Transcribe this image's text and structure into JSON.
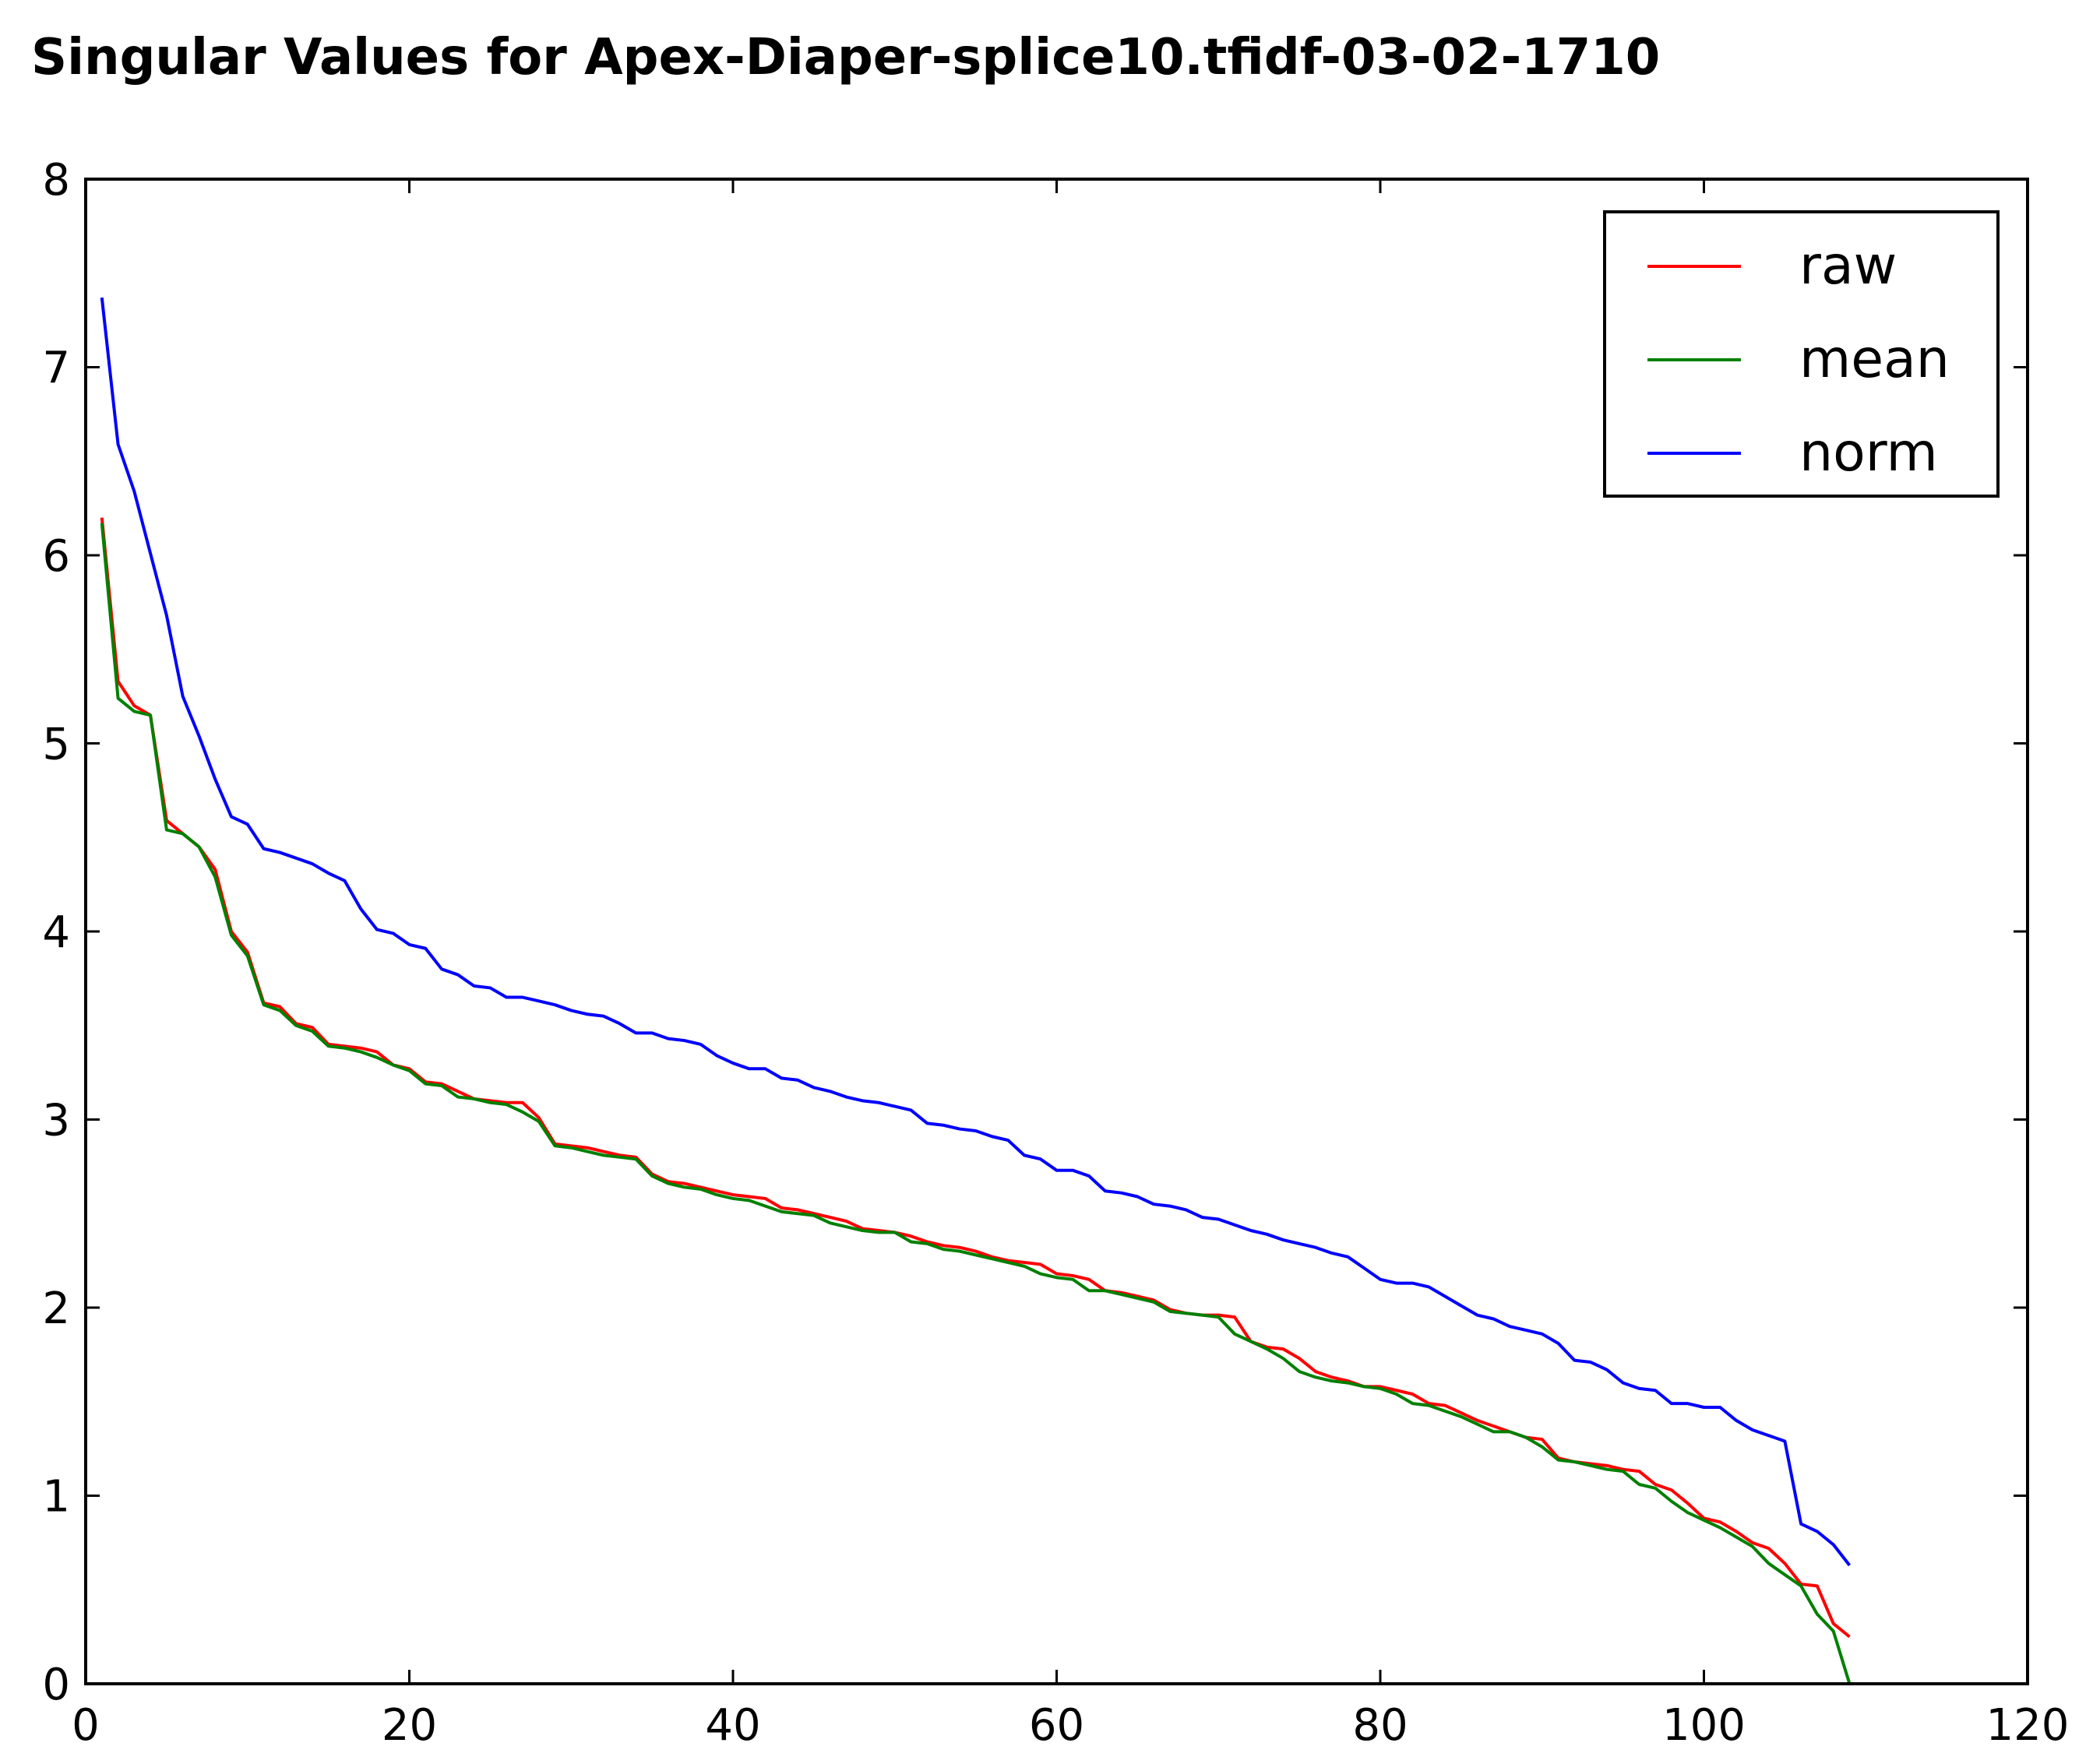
{
  "chart_data": {
    "type": "line",
    "title": "Singular Values for Apex-Diaper-splice10.tfidf-03-02-1710",
    "xlabel": "",
    "ylabel": "",
    "xlim": [
      0,
      120
    ],
    "ylim": [
      0,
      8
    ],
    "xticks": [
      0,
      20,
      40,
      60,
      80,
      100,
      120
    ],
    "yticks": [
      0,
      1,
      2,
      3,
      4,
      5,
      6,
      7,
      8
    ],
    "grid": false,
    "legend_position": "top-right",
    "x": [
      1,
      2,
      3,
      4,
      5,
      6,
      7,
      8,
      9,
      10,
      11,
      12,
      13,
      14,
      15,
      16,
      17,
      18,
      19,
      20,
      21,
      22,
      23,
      24,
      25,
      26,
      27,
      28,
      29,
      30,
      31,
      32,
      33,
      34,
      35,
      36,
      37,
      38,
      39,
      40,
      41,
      42,
      43,
      44,
      45,
      46,
      47,
      48,
      49,
      50,
      51,
      52,
      53,
      54,
      55,
      56,
      57,
      58,
      59,
      60,
      61,
      62,
      63,
      64,
      65,
      66,
      67,
      68,
      69,
      70,
      71,
      72,
      73,
      74,
      75,
      76,
      77,
      78,
      79,
      80,
      81,
      82,
      83,
      84,
      85,
      86,
      87,
      88,
      89,
      90,
      91,
      92,
      93,
      94,
      95,
      96,
      97,
      98,
      99,
      100,
      101,
      102,
      103,
      104,
      105,
      106,
      107,
      108,
      109
    ],
    "series": [
      {
        "name": "raw",
        "color": "#ff0000",
        "values": [
          6.2,
          5.33,
          5.2,
          5.15,
          4.59,
          4.52,
          4.45,
          4.33,
          4.0,
          3.89,
          3.62,
          3.6,
          3.51,
          3.49,
          3.4,
          3.39,
          3.38,
          3.36,
          3.29,
          3.27,
          3.2,
          3.19,
          3.15,
          3.11,
          3.1,
          3.09,
          3.09,
          3.01,
          2.87,
          2.86,
          2.85,
          2.83,
          2.81,
          2.8,
          2.71,
          2.67,
          2.66,
          2.64,
          2.62,
          2.6,
          2.59,
          2.58,
          2.53,
          2.52,
          2.5,
          2.48,
          2.46,
          2.42,
          2.41,
          2.4,
          2.38,
          2.35,
          2.33,
          2.32,
          2.3,
          2.27,
          2.25,
          2.24,
          2.23,
          2.18,
          2.17,
          2.15,
          2.09,
          2.08,
          2.06,
          2.04,
          1.99,
          1.97,
          1.96,
          1.96,
          1.95,
          1.82,
          1.79,
          1.78,
          1.73,
          1.66,
          1.63,
          1.61,
          1.58,
          1.58,
          1.56,
          1.54,
          1.49,
          1.48,
          1.44,
          1.4,
          1.37,
          1.34,
          1.31,
          1.3,
          1.2,
          1.18,
          1.17,
          1.16,
          1.14,
          1.13,
          1.06,
          1.03,
          0.96,
          0.88,
          0.86,
          0.81,
          0.75,
          0.72,
          0.64,
          0.53,
          0.52,
          0.32,
          0.25
        ]
      },
      {
        "name": "mean",
        "color": "#008000",
        "values": [
          6.17,
          5.24,
          5.17,
          5.15,
          4.54,
          4.52,
          4.45,
          4.29,
          3.98,
          3.87,
          3.61,
          3.58,
          3.5,
          3.47,
          3.39,
          3.38,
          3.36,
          3.33,
          3.29,
          3.26,
          3.19,
          3.18,
          3.12,
          3.11,
          3.09,
          3.08,
          3.04,
          2.99,
          2.86,
          2.85,
          2.83,
          2.81,
          2.8,
          2.79,
          2.7,
          2.66,
          2.64,
          2.63,
          2.6,
          2.58,
          2.57,
          2.54,
          2.51,
          2.5,
          2.49,
          2.45,
          2.43,
          2.41,
          2.4,
          2.4,
          2.35,
          2.34,
          2.31,
          2.3,
          2.28,
          2.26,
          2.24,
          2.22,
          2.18,
          2.16,
          2.15,
          2.09,
          2.09,
          2.07,
          2.05,
          2.03,
          1.98,
          1.97,
          1.96,
          1.95,
          1.86,
          1.82,
          1.78,
          1.73,
          1.66,
          1.63,
          1.61,
          1.6,
          1.58,
          1.57,
          1.54,
          1.49,
          1.48,
          1.45,
          1.42,
          1.38,
          1.34,
          1.34,
          1.31,
          1.26,
          1.19,
          1.18,
          1.16,
          1.14,
          1.13,
          1.06,
          1.04,
          0.97,
          0.91,
          0.87,
          0.83,
          0.78,
          0.73,
          0.64,
          0.58,
          0.52,
          0.37,
          0.28,
          0.0
        ]
      },
      {
        "name": "norm",
        "color": "#0000ff",
        "values": [
          7.37,
          6.59,
          6.34,
          6.01,
          5.68,
          5.25,
          5.04,
          4.81,
          4.61,
          4.57,
          4.44,
          4.42,
          4.39,
          4.36,
          4.31,
          4.27,
          4.12,
          4.01,
          3.99,
          3.93,
          3.91,
          3.8,
          3.77,
          3.71,
          3.7,
          3.65,
          3.65,
          3.63,
          3.61,
          3.58,
          3.56,
          3.55,
          3.51,
          3.46,
          3.46,
          3.43,
          3.42,
          3.4,
          3.34,
          3.3,
          3.27,
          3.27,
          3.22,
          3.21,
          3.17,
          3.15,
          3.12,
          3.1,
          3.09,
          3.07,
          3.05,
          2.98,
          2.97,
          2.95,
          2.94,
          2.91,
          2.89,
          2.81,
          2.79,
          2.73,
          2.73,
          2.7,
          2.62,
          2.61,
          2.59,
          2.55,
          2.54,
          2.52,
          2.48,
          2.47,
          2.44,
          2.41,
          2.39,
          2.36,
          2.34,
          2.32,
          2.29,
          2.27,
          2.21,
          2.15,
          2.13,
          2.13,
          2.11,
          2.06,
          2.01,
          1.96,
          1.94,
          1.9,
          1.88,
          1.86,
          1.81,
          1.72,
          1.71,
          1.67,
          1.6,
          1.57,
          1.56,
          1.49,
          1.49,
          1.47,
          1.47,
          1.4,
          1.35,
          1.32,
          1.29,
          0.85,
          0.81,
          0.74,
          0.63
        ]
      }
    ]
  }
}
